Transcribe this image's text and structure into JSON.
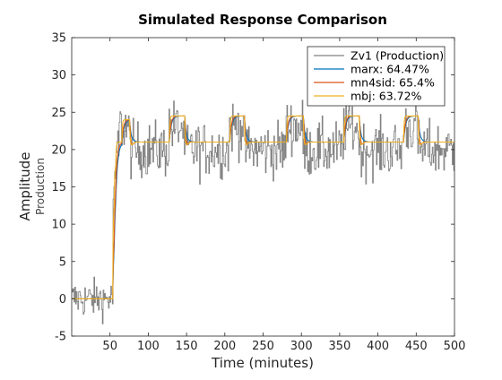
{
  "chart_data": {
    "type": "line",
    "title": "Simulated Response Comparison",
    "xlabel": "Time (minutes)",
    "ylabel": "Amplitude",
    "ysublabel": "Production",
    "xlim": [
      0,
      500
    ],
    "ylim": [
      -5,
      35
    ],
    "xticks": [
      50,
      100,
      150,
      200,
      250,
      300,
      350,
      400,
      450,
      500
    ],
    "yticks": [
      -5,
      0,
      5,
      10,
      15,
      20,
      25,
      30,
      35
    ],
    "grid": false,
    "legend_position": "top-right",
    "measured_series": {
      "name": "Zv1 (Production)",
      "color": "#808080",
      "levels": [
        {
          "x": 0,
          "y": 0
        },
        {
          "x": 54,
          "y": 14
        },
        {
          "x": 58,
          "y": 20
        },
        {
          "x": 62,
          "y": 23
        },
        {
          "x": 75,
          "y": 20
        },
        {
          "x": 127,
          "y": 23
        },
        {
          "x": 146,
          "y": 20
        },
        {
          "x": 206,
          "y": 23
        },
        {
          "x": 225,
          "y": 20
        },
        {
          "x": 280,
          "y": 23
        },
        {
          "x": 302,
          "y": 20
        },
        {
          "x": 355,
          "y": 23
        },
        {
          "x": 375,
          "y": 20
        },
        {
          "x": 433,
          "y": 23
        },
        {
          "x": 452,
          "y": 20
        },
        {
          "x": 500,
          "y": 20
        }
      ],
      "noise_std": 2.6
    },
    "series": [
      {
        "name": "marx: 64.47%",
        "color": "#0072BD",
        "tau": 2.5,
        "overshoot": 0.1
      },
      {
        "name": "mn4sid: 65.4%",
        "color": "#D95319",
        "tau": 2.0,
        "overshoot": 0.5
      },
      {
        "name": "mbj: 63.72%",
        "color": "#EDB120",
        "tau": 0.6,
        "overshoot": 0.2
      }
    ],
    "response_levels": [
      {
        "x": 0,
        "y": 0
      },
      {
        "x": 52,
        "y": 0
      },
      {
        "x": 54,
        "y": 13
      },
      {
        "x": 56,
        "y": 18
      },
      {
        "x": 58,
        "y": 21
      },
      {
        "x": 66,
        "y": 24
      },
      {
        "x": 76,
        "y": 21
      },
      {
        "x": 128,
        "y": 24.5
      },
      {
        "x": 148,
        "y": 21
      },
      {
        "x": 207,
        "y": 24.5
      },
      {
        "x": 226,
        "y": 21
      },
      {
        "x": 281,
        "y": 24.5
      },
      {
        "x": 303,
        "y": 21
      },
      {
        "x": 356,
        "y": 24.5
      },
      {
        "x": 376,
        "y": 21
      },
      {
        "x": 434,
        "y": 24.5
      },
      {
        "x": 453,
        "y": 21
      },
      {
        "x": 500,
        "y": 21
      }
    ]
  }
}
